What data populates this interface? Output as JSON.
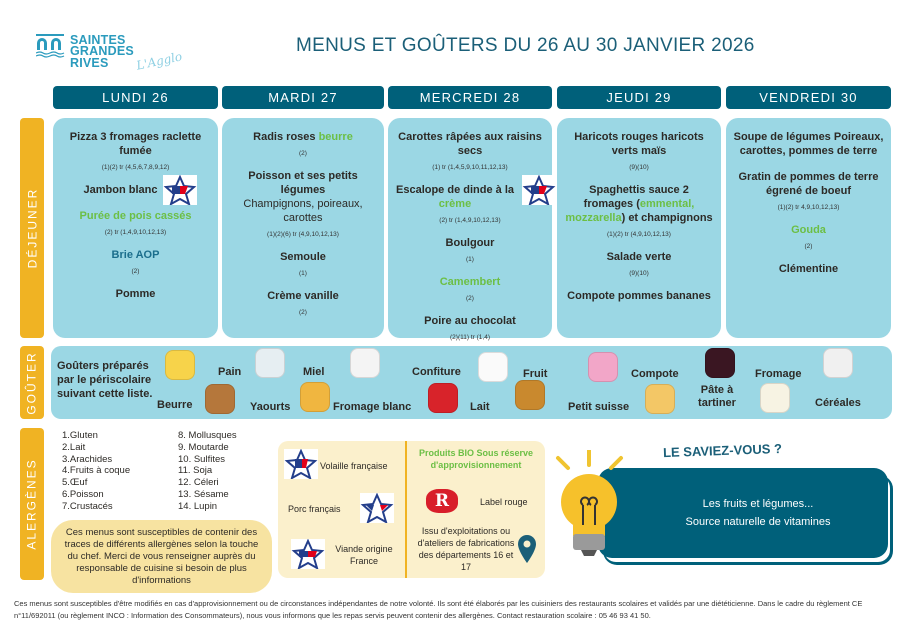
{
  "logo": {
    "line1": "SAINTES",
    "line2": "GRANDES RIVES",
    "line3": "L'Agglo"
  },
  "title": "MENUS ET GOÛTERS DU 26 AU 30 JANVIER 2026",
  "colors": {
    "header": "#00607a",
    "card": "#9bd7e4",
    "side": "#f0b323",
    "green": "#6cbf45",
    "note": "#f7e3a1"
  },
  "sections": {
    "dejeuner": "DÉJEUNER",
    "gouter": "GOÛTER",
    "allergenes": "ALERGÈNES"
  },
  "days": [
    {
      "label": "LUNDI 26",
      "items": [
        {
          "parts": [
            {
              "t": "Pizza 3 fromages raclette fumée"
            }
          ],
          "allergens": "(1)(2) tr (4,5,6,7,8,9,12)"
        },
        {
          "parts": [
            {
              "t": "Jambon blanc"
            }
          ],
          "badge": "porc",
          "allergens": ""
        },
        {
          "parts": [
            {
              "t": "Purée de pois cassés",
              "c": "green"
            }
          ],
          "allergens": "(2) tr (1,4,9,10,12,13)"
        },
        {
          "parts": [
            {
              "t": "Brie AOP",
              "c": "blue"
            }
          ],
          "allergens": "(2)"
        },
        {
          "parts": [
            {
              "t": "Pomme"
            }
          ],
          "allergens": ""
        }
      ]
    },
    {
      "label": "MARDI 27",
      "items": [
        {
          "parts": [
            {
              "t": "Radis roses "
            },
            {
              "t": "beurre",
              "c": "green"
            }
          ],
          "allergens": "(2)"
        },
        {
          "parts": [
            {
              "t": "Poisson et ses petits légumes"
            }
          ],
          "sub": "Champignons, poireaux, carottes",
          "allergens": "(1)(2)(6) tr (4,9,10,12,13)"
        },
        {
          "parts": [
            {
              "t": "Semoule"
            }
          ],
          "allergens": "(1)"
        },
        {
          "parts": [
            {
              "t": "Crème vanille"
            }
          ],
          "allergens": "(2)"
        }
      ]
    },
    {
      "label": "MERCREDI 28",
      "items": [
        {
          "parts": [
            {
              "t": "Carottes râpées aux raisins secs"
            }
          ],
          "allergens": "(1) tr (1,4,5,9,10,11,12,13)"
        },
        {
          "parts": [
            {
              "t": "Escalope de dinde à la "
            },
            {
              "t": "crème",
              "c": "green"
            }
          ],
          "badge": "volaille",
          "allergens": "(2) tr (1,4,9,10,12,13)"
        },
        {
          "parts": [
            {
              "t": "Boulgour"
            }
          ],
          "allergens": "(1)"
        },
        {
          "parts": [
            {
              "t": "Camembert",
              "c": "green"
            }
          ],
          "allergens": "(2)"
        },
        {
          "parts": [
            {
              "t": "Poire au chocolat"
            }
          ],
          "allergens": "(2)(11) tr (1,4)"
        }
      ]
    },
    {
      "label": "JEUDI 29",
      "items": [
        {
          "parts": [
            {
              "t": "Haricots rouges haricots verts maïs"
            }
          ],
          "allergens": "(9)(10)"
        },
        {
          "parts": [
            {
              "t": "Spaghettis sauce 2 fromages ("
            },
            {
              "t": "emmental, mozzarella",
              "c": "green"
            },
            {
              "t": ")  et champignons"
            }
          ],
          "allergens": "(1)(2) tr (4,9,10,12,13)"
        },
        {
          "parts": [
            {
              "t": "Salade verte"
            }
          ],
          "allergens": "(9)(10)"
        },
        {
          "parts": [
            {
              "t": "Compote pommes bananes"
            }
          ],
          "allergens": ""
        }
      ]
    },
    {
      "label": "VENDREDI 30",
      "items": [
        {
          "parts": [
            {
              "t": "Soupe de légumes Poireaux, carottes, pommes de terre"
            }
          ],
          "allergens": ""
        },
        {
          "parts": [
            {
              "t": "Gratin de pommes de terre égrené de boeuf"
            }
          ],
          "allergens": "(1)(2) tr 4,9,10,12,13)"
        },
        {
          "parts": [
            {
              "t": "Gouda",
              "c": "green"
            }
          ],
          "allergens": "(2)"
        },
        {
          "parts": [
            {
              "t": "Clémentine"
            }
          ],
          "allergens": ""
        }
      ]
    }
  ],
  "gouter": {
    "intro": "Goûters préparés par le périscolaire suivant cette liste.",
    "items": [
      {
        "label": "Beurre",
        "icon": "butter-icon"
      },
      {
        "label": "Pain",
        "icon": "bread-icon"
      },
      {
        "label": "Yaourts",
        "icon": "yogurt-icon"
      },
      {
        "label": "Miel",
        "icon": "honey-icon"
      },
      {
        "label": "Fromage blanc",
        "icon": "fromage-blanc-icon"
      },
      {
        "label": "Confiture",
        "icon": "jam-icon"
      },
      {
        "label": "Lait",
        "icon": "milk-icon"
      },
      {
        "label": "Fruit",
        "icon": "fruit-basket-icon"
      },
      {
        "label": "Petit suisse",
        "icon": "petit-suisse-icon"
      },
      {
        "label": "Compote",
        "icon": "compote-icon"
      },
      {
        "label": "Pâte à tartiner",
        "icon": "spread-jar-icon"
      },
      {
        "label": "Fromage",
        "icon": "camembert-icon"
      },
      {
        "label": "Céréales",
        "icon": "cereal-box-icon"
      }
    ]
  },
  "allergens": {
    "col1": [
      "1.Gluten",
      "2.Lait",
      "3.Arachides",
      "4.Fruits à coque",
      "5.Œuf",
      "6.Poisson",
      "7.Crustacés"
    ],
    "col2": [
      "8.  Mollusques",
      "9.  Moutarde",
      "10. Sulfites",
      "11.  Soja",
      "12. Céleri",
      "13. Sésame",
      "14. Lupin"
    ],
    "note": "Ces menus sont susceptibles de contenir des traces de différents allergènes selon la touche du chef. Merci de vous renseigner auprès du responsable de cuisine si besoin de plus d'informations"
  },
  "labels": {
    "volaille": "Volaille française",
    "porc": "Porc français",
    "viande": "Viande origine France",
    "bio": "Produits BIO Sous réserve d'approvisionnement",
    "label_rouge": "Label rouge",
    "local": "Issu d'exploitations ou d'ateliers de fabrications des départements 16 et 17"
  },
  "saviez": {
    "title": "LE SAVIEZ-VOUS ?",
    "line1": "Les fruits et légumes...",
    "line2": "Source naturelle de vitamines"
  },
  "footer": "Ces menus sont susceptibles d'être modifiés en cas d'approvisionnement ou de circonstances indépendantes de notre volonté. Ils sont été élaborés par les cuisiniers des restaurants scolaires et validés par une diététicienne. Dans le cadre du règlement CE n°11/692011 (ou règlement INCO : Information des Consommateurs), nous vous informons que les repas servis peuvent contenir des allergènes. Contact restauration scolaire : 05 46 93 41 50."
}
